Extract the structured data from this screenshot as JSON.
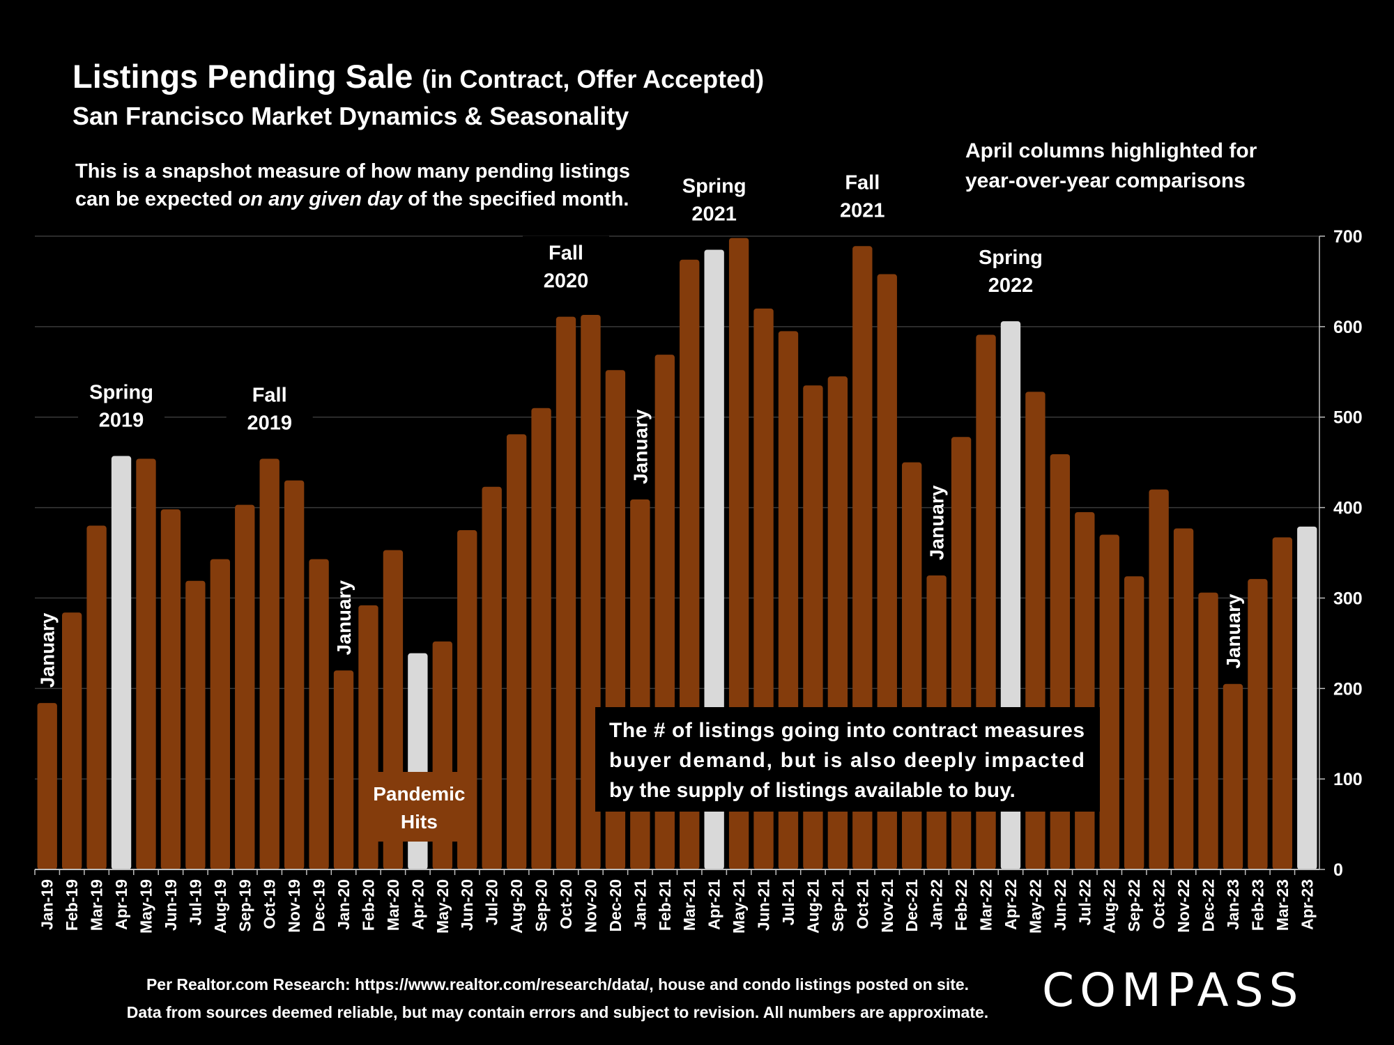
{
  "header": {
    "title": "Listings Pending Sale",
    "title_suffix": "(in Contract, Offer Accepted)",
    "subtitle": "San Francisco Market Dynamics & Seasonality"
  },
  "note": {
    "line1": "This is a snapshot measure of how many pending listings",
    "line2_pre": "can be expected ",
    "line2_em": "on any given day",
    "line2_post": " of the specified month."
  },
  "april_note": {
    "line1": "April columns highlighted for",
    "line2": "year-over-year comparisons"
  },
  "callout": {
    "line1": "The # of listings going into contract measures",
    "line2": "buyer demand, but is also deeply impacted",
    "line3": "by the supply of listings available to buy."
  },
  "footer": {
    "line1": "Per Realtor.com Research:  https://www.realtor.com/research/data/, house and condo listings posted on site.",
    "line2": "Data from sources deemed reliable, but may contain errors and subject to revision. All numbers are approximate."
  },
  "logo": "COMPASS",
  "colors": {
    "bar": "#843C0C",
    "highlight": "#D9D9D9",
    "background": "#000000",
    "text": "#FFFFFF",
    "grid": "#3A3A3A"
  },
  "chart_data": {
    "type": "bar",
    "title": "Listings Pending Sale (in Contract, Offer Accepted)",
    "subtitle": "San Francisco Market Dynamics & Seasonality",
    "categories": [
      "Jan-19",
      "Feb-19",
      "Mar-19",
      "Apr-19",
      "May-19",
      "Jun-19",
      "Jul-19",
      "Aug-19",
      "Sep-19",
      "Oct-19",
      "Nov-19",
      "Dec-19",
      "Jan-20",
      "Feb-20",
      "Mar-20",
      "Apr-20",
      "May-20",
      "Jun-20",
      "Jul-20",
      "Aug-20",
      "Sep-20",
      "Oct-20",
      "Nov-20",
      "Dec-20",
      "Jan-21",
      "Feb-21",
      "Mar-21",
      "Apr-21",
      "May-21",
      "Jun-21",
      "Jul-21",
      "Aug-21",
      "Sep-21",
      "Oct-21",
      "Nov-21",
      "Dec-21",
      "Jan-22",
      "Feb-22",
      "Mar-22",
      "Apr-22",
      "May-22",
      "Jun-22",
      "Jul-22",
      "Aug-22",
      "Sep-22",
      "Oct-22",
      "Nov-22",
      "Dec-22",
      "Jan-23",
      "Feb-23",
      "Mar-23",
      "Apr-23"
    ],
    "values": [
      184,
      284,
      380,
      457,
      454,
      398,
      319,
      343,
      403,
      454,
      430,
      343,
      220,
      292,
      353,
      239,
      252,
      375,
      423,
      481,
      510,
      611,
      613,
      552,
      409,
      569,
      674,
      685,
      698,
      620,
      595,
      535,
      545,
      689,
      658,
      450,
      325,
      478,
      591,
      606,
      528,
      459,
      395,
      370,
      324,
      420,
      377,
      306,
      205,
      321,
      367,
      379
    ],
    "highlighted": [
      "Apr-19",
      "Apr-20",
      "Apr-21",
      "Apr-22",
      "Apr-23"
    ],
    "ylim": [
      0,
      700
    ],
    "yticks": [
      0,
      100,
      200,
      300,
      400,
      500,
      600,
      700
    ],
    "y_axis_side": "right",
    "grid": true,
    "annotations": [
      {
        "category": "Jan-19",
        "text": "January",
        "vertical": true
      },
      {
        "category": "Apr-19",
        "text": "Spring 2019"
      },
      {
        "category": "Oct-19",
        "text": "Fall 2019"
      },
      {
        "category": "Jan-20",
        "text": "January",
        "vertical": true
      },
      {
        "category": "Apr-20",
        "text": "Pandemic Hits",
        "boxed": true
      },
      {
        "category": "Oct-20",
        "text": "Fall 2020"
      },
      {
        "category": "Jan-21",
        "text": "January",
        "vertical": true
      },
      {
        "category": "Apr-21",
        "text": "Spring 2021"
      },
      {
        "category": "Oct-21",
        "text": "Fall 2021"
      },
      {
        "category": "Jan-22",
        "text": "January",
        "vertical": true
      },
      {
        "category": "Apr-22",
        "text": "Spring 2022"
      },
      {
        "category": "Jan-23",
        "text": "January",
        "vertical": true
      }
    ]
  }
}
